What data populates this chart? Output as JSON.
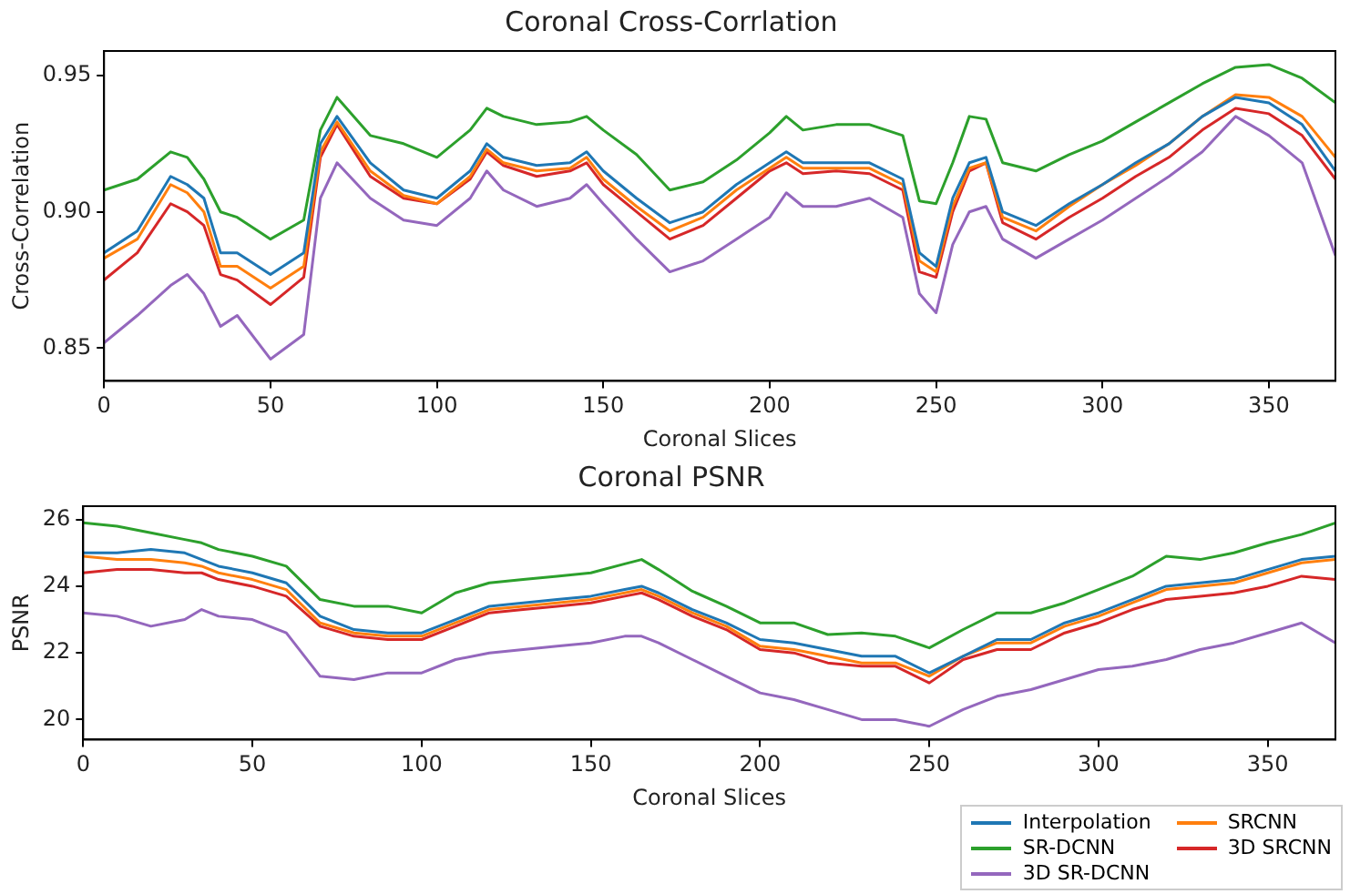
{
  "chart_data": [
    {
      "type": "line",
      "title": "Coronal Cross-Corrlation",
      "xlabel": "Coronal Slices",
      "ylabel": "Cross-Correlation",
      "xlim": [
        0,
        370
      ],
      "xticks": [
        0,
        50,
        100,
        150,
        200,
        250,
        300,
        350
      ],
      "ylim": [
        0.838,
        0.959
      ],
      "yticks": [
        {
          "value": 0.85,
          "label": "0.85"
        },
        {
          "value": 0.9,
          "label": "0.90"
        },
        {
          "value": 0.95,
          "label": "0.95"
        }
      ],
      "legend": false,
      "x": [
        0,
        10,
        20,
        25,
        30,
        35,
        40,
        50,
        60,
        65,
        70,
        80,
        90,
        100,
        110,
        115,
        120,
        130,
        140,
        145,
        150,
        160,
        170,
        180,
        190,
        200,
        205,
        210,
        220,
        230,
        240,
        245,
        250,
        255,
        260,
        265,
        270,
        280,
        290,
        300,
        310,
        320,
        330,
        340,
        350,
        360,
        370
      ],
      "series": [
        {
          "color": "#1f77b4",
          "values": [
            0.885,
            0.893,
            0.913,
            0.91,
            0.905,
            0.885,
            0.885,
            0.877,
            0.885,
            0.925,
            0.935,
            0.918,
            0.908,
            0.905,
            0.915,
            0.925,
            0.92,
            0.917,
            0.918,
            0.922,
            0.915,
            0.905,
            0.896,
            0.9,
            0.91,
            0.918,
            0.922,
            0.918,
            0.918,
            0.918,
            0.912,
            0.885,
            0.88,
            0.905,
            0.918,
            0.92,
            0.9,
            0.895,
            0.903,
            0.91,
            0.918,
            0.925,
            0.935,
            0.942,
            0.94,
            0.932,
            0.915
          ]
        },
        {
          "color": "#ff7f0e",
          "values": [
            0.883,
            0.89,
            0.91,
            0.907,
            0.9,
            0.88,
            0.88,
            0.872,
            0.88,
            0.922,
            0.933,
            0.915,
            0.906,
            0.903,
            0.913,
            0.923,
            0.918,
            0.915,
            0.916,
            0.92,
            0.912,
            0.902,
            0.893,
            0.898,
            0.908,
            0.916,
            0.92,
            0.916,
            0.916,
            0.916,
            0.91,
            0.882,
            0.878,
            0.902,
            0.916,
            0.918,
            0.898,
            0.893,
            0.902,
            0.91,
            0.917,
            0.925,
            0.935,
            0.943,
            0.942,
            0.935,
            0.92
          ]
        },
        {
          "color": "#2ca02c",
          "values": [
            0.908,
            0.912,
            0.922,
            0.92,
            0.912,
            0.9,
            0.898,
            0.89,
            0.897,
            0.93,
            0.942,
            0.928,
            0.925,
            0.92,
            0.93,
            0.938,
            0.935,
            0.932,
            0.933,
            0.935,
            0.93,
            0.921,
            0.908,
            0.911,
            0.919,
            0.929,
            0.935,
            0.93,
            0.932,
            0.932,
            0.928,
            0.904,
            0.903,
            0.918,
            0.935,
            0.934,
            0.918,
            0.915,
            0.921,
            0.926,
            0.933,
            0.94,
            0.947,
            0.953,
            0.954,
            0.949,
            0.94
          ]
        },
        {
          "color": "#d62728",
          "values": [
            0.875,
            0.885,
            0.903,
            0.9,
            0.895,
            0.877,
            0.875,
            0.866,
            0.876,
            0.92,
            0.932,
            0.913,
            0.905,
            0.903,
            0.912,
            0.922,
            0.917,
            0.913,
            0.915,
            0.918,
            0.91,
            0.9,
            0.89,
            0.895,
            0.905,
            0.915,
            0.918,
            0.914,
            0.915,
            0.914,
            0.908,
            0.878,
            0.876,
            0.9,
            0.915,
            0.918,
            0.896,
            0.89,
            0.898,
            0.905,
            0.913,
            0.92,
            0.93,
            0.938,
            0.936,
            0.928,
            0.912
          ]
        },
        {
          "color": "#9467bd",
          "values": [
            0.852,
            0.862,
            0.873,
            0.877,
            0.87,
            0.858,
            0.862,
            0.846,
            0.855,
            0.905,
            0.918,
            0.905,
            0.897,
            0.895,
            0.905,
            0.915,
            0.908,
            0.902,
            0.905,
            0.91,
            0.903,
            0.89,
            0.878,
            0.882,
            0.89,
            0.898,
            0.907,
            0.902,
            0.902,
            0.905,
            0.898,
            0.87,
            0.863,
            0.888,
            0.9,
            0.902,
            0.89,
            0.883,
            0.89,
            0.897,
            0.905,
            0.913,
            0.922,
            0.935,
            0.928,
            0.918,
            0.884
          ]
        }
      ]
    },
    {
      "type": "line",
      "title": "Coronal PSNR",
      "xlabel": "Coronal Slices",
      "ylabel": "PSNR",
      "xlim": [
        0,
        370
      ],
      "xticks": [
        0,
        50,
        100,
        150,
        200,
        250,
        300,
        350
      ],
      "ylim": [
        19.4,
        26.4
      ],
      "yticks": [
        20,
        22,
        24,
        26
      ],
      "legend": "bottom right",
      "x": [
        0,
        10,
        20,
        30,
        35,
        40,
        50,
        60,
        70,
        80,
        90,
        100,
        110,
        120,
        130,
        140,
        150,
        160,
        165,
        170,
        180,
        190,
        200,
        210,
        220,
        230,
        240,
        250,
        260,
        270,
        280,
        290,
        300,
        310,
        320,
        330,
        340,
        350,
        360,
        370
      ],
      "series": [
        {
          "name": "Interpolation",
          "color": "#1f77b4",
          "values": [
            25.0,
            25.0,
            25.1,
            25.0,
            24.8,
            24.6,
            24.4,
            24.1,
            23.1,
            22.7,
            22.6,
            22.6,
            23.0,
            23.4,
            23.5,
            23.6,
            23.7,
            23.9,
            24.0,
            23.8,
            23.3,
            22.9,
            22.4,
            22.3,
            22.1,
            21.9,
            21.9,
            21.4,
            21.9,
            22.4,
            22.4,
            22.9,
            23.2,
            23.6,
            24.0,
            24.1,
            24.2,
            24.5,
            24.8,
            24.9
          ]
        },
        {
          "name": "SRCNN",
          "color": "#ff7f0e",
          "values": [
            24.9,
            24.8,
            24.8,
            24.7,
            24.6,
            24.4,
            24.2,
            23.9,
            22.9,
            22.6,
            22.5,
            22.5,
            22.9,
            23.3,
            23.4,
            23.5,
            23.6,
            23.8,
            23.9,
            23.7,
            23.2,
            22.8,
            22.2,
            22.1,
            21.9,
            21.7,
            21.7,
            21.3,
            21.9,
            22.3,
            22.3,
            22.8,
            23.1,
            23.5,
            23.9,
            24.0,
            24.1,
            24.4,
            24.7,
            24.8
          ]
        },
        {
          "name": "SR-DCNN",
          "color": "#2ca02c",
          "values": [
            25.9,
            25.8,
            25.6,
            25.4,
            25.3,
            25.1,
            24.9,
            24.6,
            23.6,
            23.4,
            23.4,
            23.2,
            23.8,
            24.1,
            24.2,
            24.3,
            24.4,
            24.67,
            24.8,
            24.5,
            23.85,
            23.4,
            22.9,
            22.9,
            22.55,
            22.6,
            22.5,
            22.15,
            22.7,
            23.2,
            23.2,
            23.5,
            23.9,
            24.3,
            24.9,
            24.8,
            25.0,
            25.3,
            25.55,
            25.9
          ]
        },
        {
          "name": "3D SRCNN",
          "color": "#d62728",
          "values": [
            24.4,
            24.5,
            24.5,
            24.4,
            24.4,
            24.2,
            24.0,
            23.7,
            22.8,
            22.5,
            22.4,
            22.4,
            22.8,
            23.2,
            23.3,
            23.4,
            23.5,
            23.7,
            23.8,
            23.6,
            23.1,
            22.7,
            22.1,
            22.0,
            21.7,
            21.6,
            21.6,
            21.1,
            21.8,
            22.1,
            22.1,
            22.6,
            22.9,
            23.3,
            23.6,
            23.7,
            23.8,
            24.0,
            24.3,
            24.2
          ]
        },
        {
          "name": "3D SR-DCNN",
          "color": "#9467bd",
          "values": [
            23.2,
            23.1,
            22.8,
            23.0,
            23.3,
            23.1,
            23.0,
            22.6,
            21.3,
            21.2,
            21.4,
            21.4,
            21.8,
            22.0,
            22.1,
            22.2,
            22.3,
            22.5,
            22.5,
            22.3,
            21.8,
            21.3,
            20.8,
            20.6,
            20.3,
            20.0,
            20.0,
            19.8,
            20.3,
            20.7,
            20.9,
            21.2,
            21.5,
            21.6,
            21.8,
            22.1,
            22.3,
            22.6,
            22.9,
            22.3
          ]
        }
      ]
    }
  ]
}
